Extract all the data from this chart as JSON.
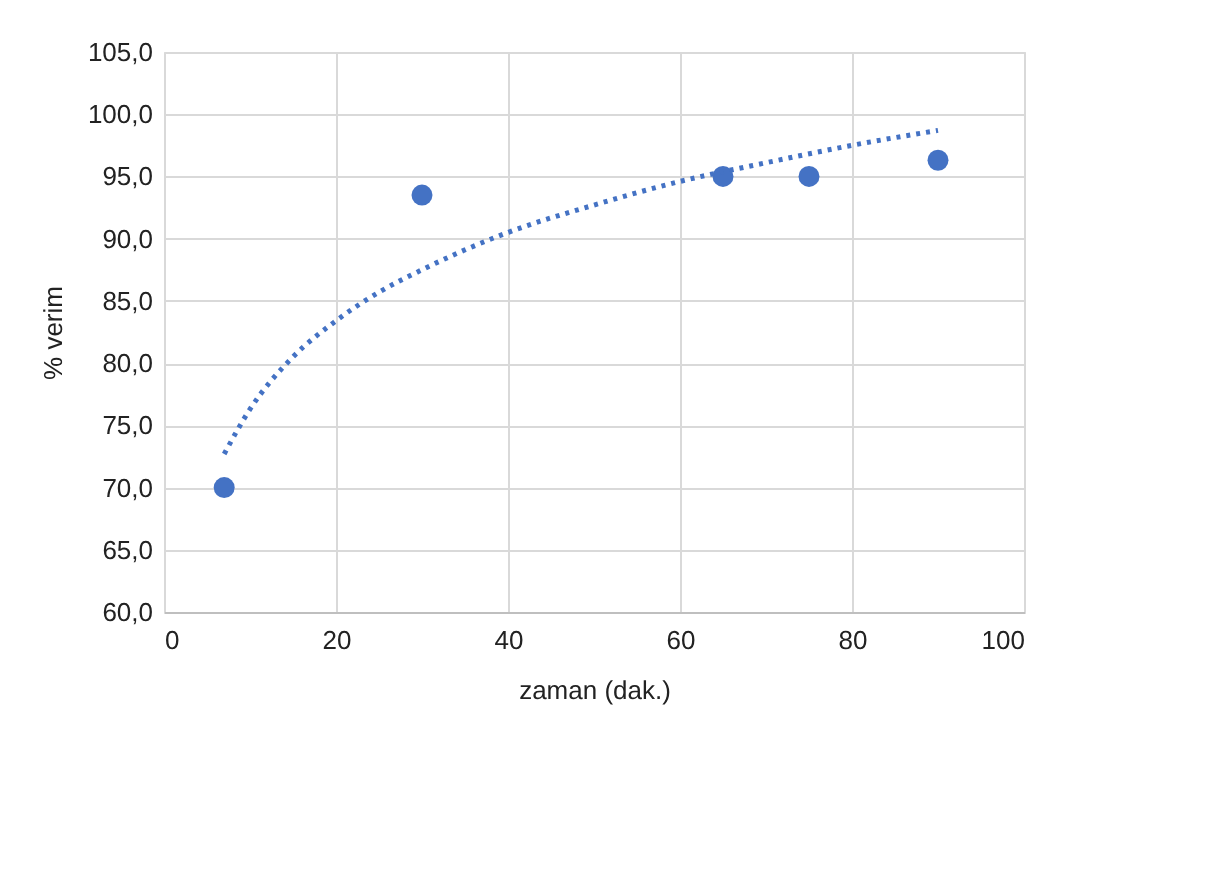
{
  "chart_data": {
    "type": "scatter",
    "xlabel": "zaman (dak.)",
    "ylabel": "% verim",
    "xlim": [
      0,
      100
    ],
    "xticks": [
      0,
      20,
      40,
      60,
      80,
      100
    ],
    "ylim": [
      60,
      105
    ],
    "yticks": [
      {
        "value": 60,
        "label": "60,0"
      },
      {
        "value": 65,
        "label": "65,0"
      },
      {
        "value": 70,
        "label": "70,0"
      },
      {
        "value": 75,
        "label": "75,0"
      },
      {
        "value": 80,
        "label": "80,0"
      },
      {
        "value": 85,
        "label": "85,0"
      },
      {
        "value": 90,
        "label": "90,0"
      },
      {
        "value": 95,
        "label": "95,0"
      },
      {
        "value": 100,
        "label": "100,0"
      },
      {
        "value": 105,
        "label": "105,0"
      }
    ],
    "grid": true,
    "series": [
      {
        "color": "#4472c4",
        "marker": "circle",
        "x": [
          7,
          30,
          65,
          75,
          90
        ],
        "values": [
          70.0,
          93.5,
          95.0,
          95.0,
          96.3
        ]
      },
      {
        "type": "line",
        "color": "#4472c4",
        "marker": "none",
        "line_style": "dotted",
        "x": [
          7,
          10,
          15,
          20,
          25,
          30,
          40,
          50,
          60,
          70,
          80,
          90
        ],
        "values": [
          72.7,
          76.3,
          80.5,
          83.4,
          85.7,
          87.5,
          90.5,
          92.7,
          94.6,
          96.1,
          97.5,
          98.7
        ]
      }
    ]
  }
}
